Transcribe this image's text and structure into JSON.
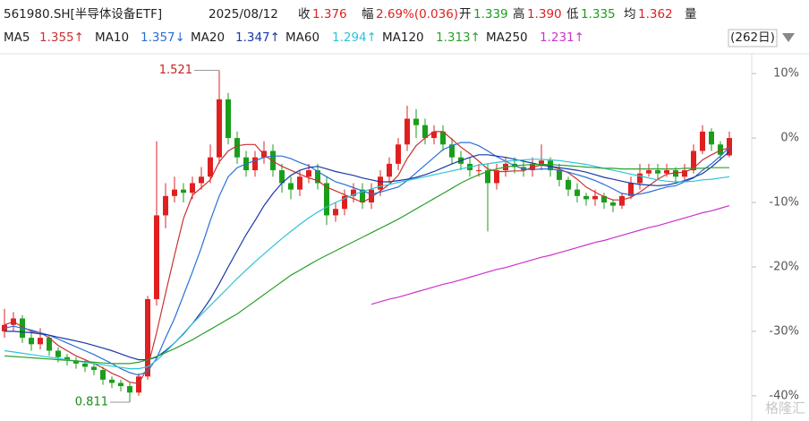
{
  "header": {
    "symbol": "561980.SH[半导体设备ETF]",
    "date": "2025/08/12",
    "fields": [
      {
        "label": "收",
        "value": "1.376",
        "color": "#e02020"
      },
      {
        "label": "幅",
        "value": "2.69%(0.036)",
        "color": "#e02020"
      },
      {
        "label": "开",
        "value": "1.339",
        "color": "#1a9e1a"
      },
      {
        "label": "高",
        "value": "1.390",
        "color": "#e02020"
      },
      {
        "label": "低",
        "value": "1.335",
        "color": "#1a9e1a"
      },
      {
        "label": "均",
        "value": "1.362",
        "color": "#e02020"
      }
    ],
    "volume_label": "量",
    "period": "(262日)"
  },
  "chart_data": {
    "type": "candlestick",
    "open": [
      -30,
      -29,
      -28,
      -31,
      -32,
      -31,
      -33,
      -34,
      -34.5,
      -35,
      -35.5,
      -36,
      -37.5,
      -38,
      -38.5,
      -39.5,
      -37,
      -25,
      -12,
      -9,
      -8,
      -8.5,
      -7,
      -6,
      -3,
      6,
      0,
      -3,
      -5,
      -3,
      -2,
      -5,
      -7,
      -8,
      -6,
      -5,
      -7,
      -12,
      -11,
      -9,
      -8,
      -10,
      -8,
      -6,
      -4,
      -1,
      3,
      2,
      0,
      1,
      -1,
      -3,
      -4,
      -5,
      -5,
      -7,
      -5,
      -4,
      -4.5,
      -5,
      -4,
      -3.5,
      -5,
      -6.5,
      -8,
      -9,
      -9.5,
      -9,
      -10,
      -10.5,
      -9,
      -7,
      -5.5,
      -5,
      -5.5,
      -5,
      -6,
      -5,
      -2,
      1,
      -1,
      -2.7
    ],
    "high": [
      -26.5,
      -27,
      -27.5,
      -30,
      -29.5,
      -30.5,
      -32.5,
      -33.5,
      -34,
      -34.5,
      -35,
      -35.5,
      -37,
      -37.5,
      -38,
      -36.5,
      -24.5,
      -0.5,
      -7,
      -6,
      -7,
      -6,
      -4.5,
      -1,
      10.5,
      7,
      1,
      -2,
      -2,
      -0.5,
      -1,
      -4,
      -6,
      -5,
      -4,
      -4,
      -6,
      -10,
      -8,
      -7,
      -7,
      -7,
      -5,
      -3,
      0,
      5,
      4.5,
      3,
      2,
      2,
      0,
      -2,
      -3,
      -4,
      -4,
      -4,
      -3,
      -3,
      -3.5,
      -3,
      -1,
      -3,
      -4,
      -6,
      -7,
      -8.5,
      -8,
      -8.5,
      -9.5,
      -8.5,
      -6,
      -4,
      -4,
      -4,
      -4,
      -4.5,
      -4,
      -1,
      2,
      1.5,
      -0.5,
      1
    ],
    "low": [
      -31,
      -30,
      -31.8,
      -33,
      -32.8,
      -33.8,
      -34.8,
      -35.3,
      -35.8,
      -36.3,
      -36.8,
      -38.3,
      -38.8,
      -39.3,
      -41,
      -40,
      -37.5,
      -26,
      -14,
      -10,
      -10,
      -9.5,
      -8,
      -7,
      -4,
      -1,
      -4,
      -6,
      -6,
      -4,
      -6,
      -8.5,
      -9.5,
      -9,
      -7,
      -8,
      -13.5,
      -13,
      -12,
      -10,
      -11,
      -11,
      -9,
      -7,
      -5,
      -2,
      0,
      -1,
      -1,
      -2,
      -4,
      -5,
      -6,
      -6,
      -14.5,
      -8,
      -6,
      -5.5,
      -6,
      -6,
      -5,
      -6,
      -7.5,
      -9,
      -10,
      -10.5,
      -10.5,
      -11,
      -11.5,
      -11,
      -9.5,
      -8,
      -6,
      -6.5,
      -6,
      -7,
      -6.5,
      -5.5,
      -2.5,
      -2,
      -3.5,
      -3
    ],
    "close": [
      -29,
      -28,
      -31,
      -32,
      -31,
      -33,
      -34,
      -34.5,
      -35,
      -35.5,
      -36,
      -37.5,
      -38,
      -38.5,
      -39.5,
      -37,
      -25,
      -12,
      -9,
      -8,
      -8.5,
      -7,
      -6,
      -3,
      6,
      0,
      -3,
      -5,
      -3,
      -2,
      -5,
      -7,
      -8,
      -6,
      -5,
      -7,
      -12,
      -11,
      -9,
      -8,
      -10,
      -8,
      -6,
      -4,
      -1,
      3,
      2,
      0,
      1,
      -1,
      -3,
      -4,
      -5,
      -5,
      -7,
      -5,
      -4,
      -4.5,
      -5,
      -4,
      -3.5,
      -5,
      -6.5,
      -8,
      -9,
      -9.5,
      -9,
      -10,
      -10.5,
      -9,
      -7,
      -5.5,
      -5,
      -5.5,
      -5,
      -6,
      -5,
      -2,
      1,
      -1,
      -2.6,
      0
    ],
    "up_color": "#e02020",
    "down_color": "#1a9e1a",
    "ylim": [
      -42.8,
      12.8
    ],
    "yticks": [
      {
        "value": 10,
        "label": "10%"
      },
      {
        "value": 0,
        "label": "0%"
      },
      {
        "value": -10,
        "label": "-10%"
      },
      {
        "value": -20,
        "label": "-20%"
      },
      {
        "value": -30,
        "label": "-30%"
      },
      {
        "value": -40,
        "label": "-40%"
      }
    ],
    "grid": false,
    "annotations": {
      "high": "1.521",
      "low": "0.811"
    },
    "watermark": "格隆汇",
    "series": [
      {
        "name": "MA5",
        "last_label": "1.355↑",
        "color": "#c83232",
        "values": [
          -29,
          -28.5,
          -29.3,
          -30,
          -30.2,
          -31,
          -32.2,
          -33,
          -33.8,
          -34.4,
          -35,
          -35.7,
          -36.5,
          -37.1,
          -37.9,
          -38.1,
          -35.6,
          -30.2,
          -24.1,
          -18.2,
          -12.5,
          -8.9,
          -7.7,
          -6.5,
          -3.7,
          -2,
          -1.2,
          -1,
          -1,
          -2.6,
          -3.6,
          -4.4,
          -5,
          -5.6,
          -6.2,
          -6.6,
          -7.6,
          -8.2,
          -8.8,
          -9.4,
          -10,
          -9.2,
          -8.2,
          -7.2,
          -5.8,
          -3.2,
          -1.2,
          0,
          1,
          1,
          -0.2,
          -1.4,
          -2.4,
          -3.6,
          -4.8,
          -5.2,
          -5.2,
          -5.1,
          -5.1,
          -4.5,
          -4.2,
          -4.4,
          -4.8,
          -5.4,
          -6.4,
          -7.6,
          -8.4,
          -9.1,
          -9.6,
          -9.6,
          -9.2,
          -8.4,
          -7.4,
          -6.4,
          -5.6,
          -5.4,
          -5.3,
          -4.7,
          -3.4,
          -2.6,
          -1.9,
          -1.5
        ]
      },
      {
        "name": "MA10",
        "last_label": "1.357↓",
        "color": "#2a6fd6",
        "values": [
          -29.5,
          -29.2,
          -29.5,
          -29.8,
          -30.2,
          -30.6,
          -31.2,
          -31.8,
          -32.4,
          -33,
          -33.6,
          -34.3,
          -35,
          -35.8,
          -36.4,
          -36.8,
          -36.2,
          -34.2,
          -31,
          -28,
          -24.4,
          -20.8,
          -17,
          -12.8,
          -9,
          -6,
          -4.6,
          -4,
          -3.5,
          -3,
          -2.8,
          -2.8,
          -3.2,
          -3.8,
          -4.3,
          -5.2,
          -6,
          -6.8,
          -7.2,
          -7.7,
          -8.2,
          -8.7,
          -8.4,
          -8,
          -7.6,
          -6.6,
          -5.4,
          -4.2,
          -3,
          -1.8,
          -1.2,
          -0.7,
          -0.7,
          -1.2,
          -2,
          -2.9,
          -3.6,
          -4.3,
          -4.8,
          -4.9,
          -4.8,
          -4.8,
          -5,
          -5.3,
          -5.7,
          -6.1,
          -6.6,
          -7.2,
          -7.9,
          -8.6,
          -8.8,
          -8.7,
          -8.4,
          -8,
          -7.6,
          -7.4,
          -6.8,
          -6.2,
          -5,
          -4,
          -2.8,
          -1.4
        ]
      },
      {
        "name": "MA20",
        "last_label": "1.347↑",
        "color": "#1838a8",
        "values": [
          -30,
          -30,
          -30.1,
          -30.2,
          -30.4,
          -30.6,
          -30.9,
          -31.2,
          -31.5,
          -31.8,
          -32.2,
          -32.6,
          -33,
          -33.5,
          -34,
          -34.4,
          -34.4,
          -34,
          -33,
          -31.8,
          -30.4,
          -28.8,
          -27,
          -25,
          -22.6,
          -20,
          -17.5,
          -15,
          -12.8,
          -10.5,
          -8.6,
          -7,
          -5.8,
          -5,
          -4.6,
          -4.4,
          -4.8,
          -5.2,
          -5.5,
          -5.8,
          -6.2,
          -6.5,
          -6.8,
          -6.8,
          -6.6,
          -6.4,
          -6.1,
          -5.7,
          -5.2,
          -4.6,
          -4,
          -3.5,
          -3,
          -2.6,
          -2.6,
          -2.8,
          -3,
          -3.3,
          -3.6,
          -3.9,
          -4.2,
          -4.4,
          -4.6,
          -4.8,
          -5,
          -5.3,
          -5.7,
          -6.1,
          -6.4,
          -6.7,
          -7,
          -7.2,
          -7.3,
          -7.4,
          -7.3,
          -7,
          -6.6,
          -6.1,
          -5.5,
          -4.5,
          -3.3,
          -2.1
        ]
      },
      {
        "name": "MA60",
        "last_label": "1.294↑",
        "color": "#2bc4d8",
        "values": [
          -33,
          -33.2,
          -33.4,
          -33.6,
          -33.8,
          -34,
          -34.2,
          -34.4,
          -34.6,
          -34.8,
          -35,
          -35.2,
          -35.4,
          -35.6,
          -35.8,
          -35.8,
          -35.5,
          -34.5,
          -33.2,
          -31.8,
          -30.3,
          -28.8,
          -27.4,
          -26,
          -24.6,
          -23.2,
          -21.8,
          -20.5,
          -19.2,
          -18,
          -16.8,
          -15.6,
          -14.5,
          -13.4,
          -12.4,
          -11.5,
          -10.7,
          -10,
          -9.4,
          -8.8,
          -8.3,
          -7.9,
          -7.5,
          -7.2,
          -6.9,
          -6.6,
          -6.3,
          -6,
          -5.7,
          -5.4,
          -5.1,
          -4.8,
          -4.5,
          -4.2,
          -4,
          -3.8,
          -3.6,
          -3.5,
          -3.4,
          -3.3,
          -3.3,
          -3.4,
          -3.5,
          -3.7,
          -3.9,
          -4.1,
          -4.4,
          -4.7,
          -5,
          -5.3,
          -5.6,
          -5.9,
          -6.2,
          -6.5,
          -6.7,
          -6.8,
          -6.8,
          -6.7,
          -6.5,
          -6.4,
          -6.2,
          -6
        ]
      },
      {
        "name": "MA120",
        "last_label": "1.313↑",
        "color": "#2ca02c",
        "values": [
          -33.8,
          -33.9,
          -34,
          -34.1,
          -34.2,
          -34.3,
          -34.4,
          -34.5,
          -34.6,
          -34.7,
          -34.8,
          -34.9,
          -35,
          -35,
          -35,
          -34.8,
          -34.4,
          -33.9,
          -33.3,
          -32.7,
          -32,
          -31.3,
          -30.5,
          -29.7,
          -28.9,
          -28.1,
          -27.3,
          -26.3,
          -25.3,
          -24.3,
          -23.3,
          -22.3,
          -21.3,
          -20.5,
          -19.7,
          -18.9,
          -18.2,
          -17.5,
          -16.8,
          -16.1,
          -15.4,
          -14.7,
          -14,
          -13.3,
          -12.6,
          -11.8,
          -11,
          -10.2,
          -9.4,
          -8.6,
          -7.8,
          -7,
          -6.3,
          -5.7,
          -5.2,
          -4.8,
          -4.5,
          -4.3,
          -4.2,
          -4.1,
          -4.1,
          -4.1,
          -4.2,
          -4.3,
          -4.4,
          -4.5,
          -4.6,
          -4.7,
          -4.7,
          -4.8,
          -4.8,
          -4.8,
          -4.8,
          -4.8,
          -4.8,
          -4.8,
          -4.7,
          -4.7,
          -4.7,
          -4.6,
          -4.6,
          -4.6
        ]
      },
      {
        "name": "MA250",
        "last_label": "1.231↑",
        "color": "#cc33cc",
        "values": [
          null,
          null,
          null,
          null,
          null,
          null,
          null,
          null,
          null,
          null,
          null,
          null,
          null,
          null,
          null,
          null,
          null,
          null,
          null,
          null,
          null,
          null,
          null,
          null,
          null,
          null,
          null,
          null,
          null,
          null,
          null,
          null,
          null,
          null,
          null,
          null,
          null,
          null,
          null,
          null,
          null,
          -25.8,
          -25.4,
          -25.0,
          -24.7,
          -24.3,
          -23.9,
          -23.5,
          -23.1,
          -22.7,
          -22.4,
          -22.0,
          -21.6,
          -21.2,
          -20.8,
          -20.4,
          -20.1,
          -19.7,
          -19.3,
          -18.9,
          -18.5,
          -18.2,
          -17.8,
          -17.4,
          -17.0,
          -16.6,
          -16.2,
          -15.9,
          -15.5,
          -15.1,
          -14.7,
          -14.3,
          -13.9,
          -13.6,
          -13.2,
          -12.8,
          -12.4,
          -12.0,
          -11.6,
          -11.3,
          -10.9,
          -10.5
        ]
      }
    ]
  }
}
